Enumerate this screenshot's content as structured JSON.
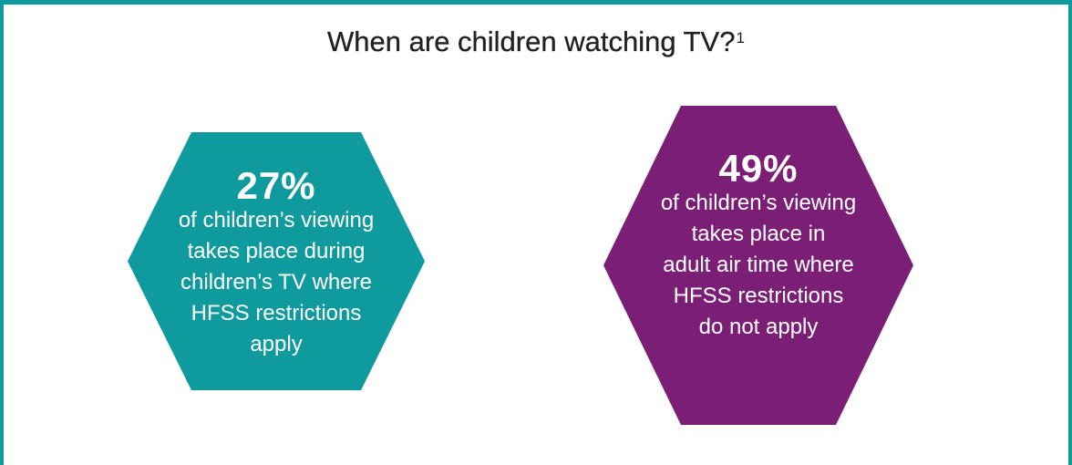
{
  "title": {
    "text": "When are children watching TV?",
    "footnote": "1"
  },
  "stats": [
    {
      "value": "27%",
      "description": "of children’s viewing\ntakes place during\nchildren’s TV where\nHFSS restrictions\napply",
      "color": "#0f9a9e"
    },
    {
      "value": "49%",
      "description": "of children’s viewing\ntakes place in\nadult air time where\nHFSS restrictions\ndo not apply",
      "color": "#7b1f76"
    }
  ],
  "colors": {
    "border": "#0f9a9e",
    "text_on_shape": "#ffffff"
  }
}
